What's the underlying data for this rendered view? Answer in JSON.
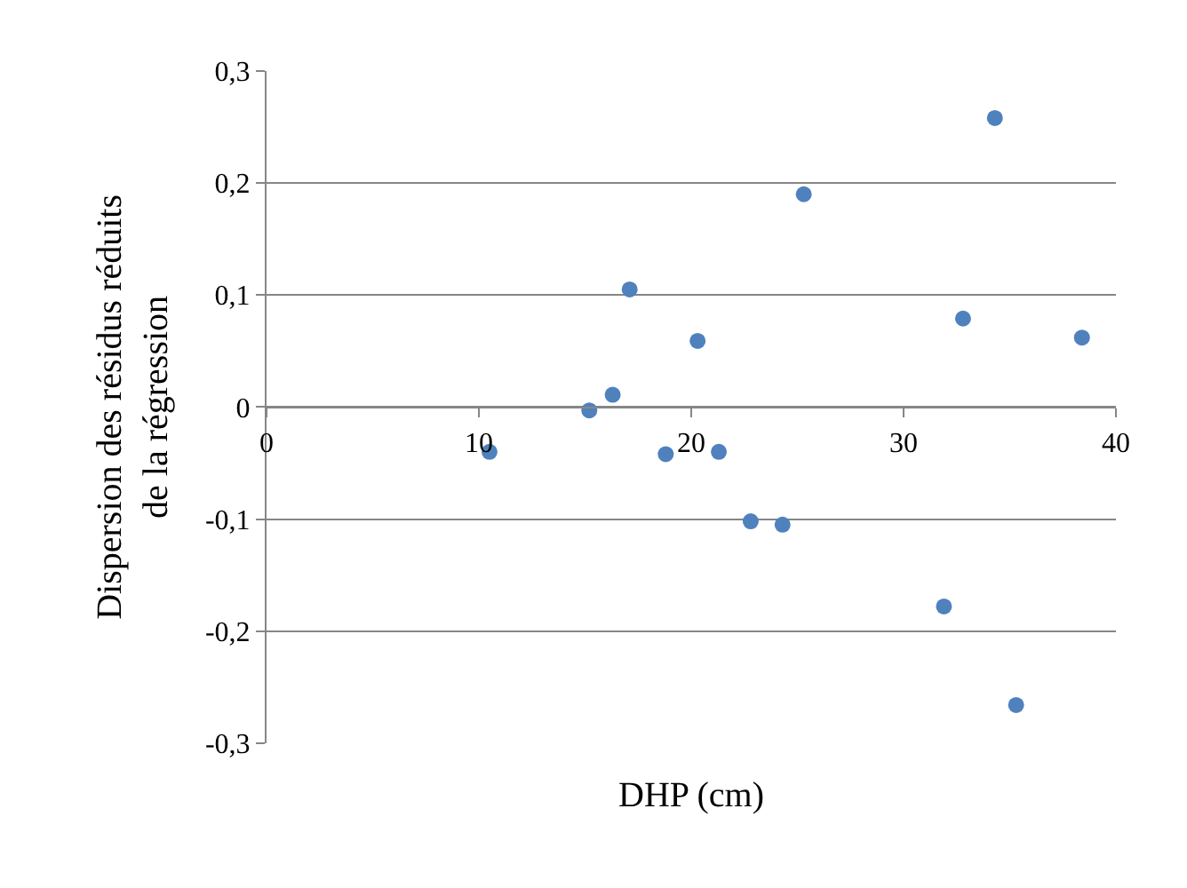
{
  "chart_data": {
    "type": "scatter",
    "xlabel": "DHP (cm)",
    "ylabel": "Dispersion des résidus réduits\nde la régression",
    "x": [
      10.5,
      15.2,
      16.3,
      17.1,
      18.8,
      20.3,
      21.3,
      22.8,
      24.3,
      25.3,
      31.9,
      32.8,
      34.3,
      35.3,
      38.4
    ],
    "series": [
      {
        "color": "#4f81bd",
        "values": [
          -0.04,
          -0.003,
          0.011,
          0.105,
          -0.042,
          0.059,
          -0.04,
          -0.102,
          -0.105,
          0.19,
          -0.178,
          0.079,
          0.258,
          -0.266,
          0.062
        ]
      }
    ],
    "xlim": [
      0,
      40
    ],
    "xticks": [
      0,
      10,
      20,
      30,
      40
    ],
    "ylim": [
      -0.3,
      0.3
    ],
    "yticks": [
      {
        "value": -0.3,
        "label": "-0,3"
      },
      {
        "value": -0.2,
        "label": "-0,2"
      },
      {
        "value": -0.1,
        "label": "-0,1"
      },
      {
        "value": 0,
        "label": "0"
      },
      {
        "value": 0.1,
        "label": "0,1"
      },
      {
        "value": 0.2,
        "label": "0,2"
      },
      {
        "value": 0.3,
        "label": "0,3"
      }
    ],
    "grid": "y",
    "marker": "circle",
    "legend": false
  }
}
